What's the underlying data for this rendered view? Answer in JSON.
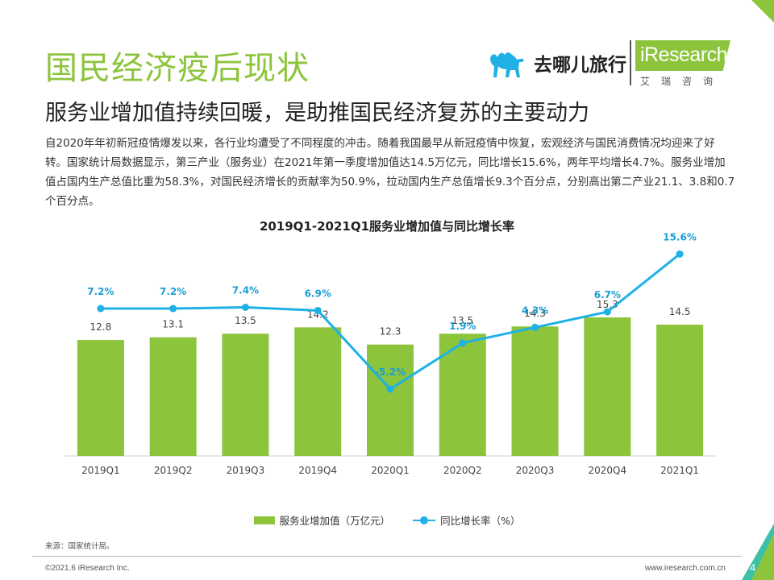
{
  "header": {
    "title": "国民经济疫后现状",
    "subtitle": "服务业增加值持续回暖，是助推国民经济复苏的主要动力"
  },
  "logos": {
    "qunar": "去哪儿旅行",
    "iresearch": "iResearch",
    "iresearch_cn": "艾瑞咨询"
  },
  "body_text": "自2020年年初新冠疫情爆发以来，各行业均遭受了不同程度的冲击。随着我国最早从新冠疫情中恢复，宏观经济与国民消费情况均迎来了好转。国家统计局数据显示，第三产业（服务业）在2021年第一季度增加值达14.5万亿元，同比增长15.6%，两年平均增长4.7%。服务业增加值占国内生产总值比重为58.3%，对国民经济增长的贡献率为50.9%，拉动国内生产总值增长9.3个百分点，分别高出第二产业21.1、3.8和0.7个百分点。",
  "chart_data": {
    "type": "bar",
    "title": "2019Q1-2021Q1服务业增加值与同比增长率",
    "categories": [
      "2019Q1",
      "2019Q2",
      "2019Q3",
      "2019Q4",
      "2020Q1",
      "2020Q2",
      "2020Q3",
      "2020Q4",
      "2021Q1"
    ],
    "series": [
      {
        "name": "服务业增加值（万亿元）",
        "type": "bar",
        "values": [
          12.8,
          13.1,
          13.5,
          14.2,
          12.3,
          13.5,
          14.3,
          15.3,
          14.5
        ],
        "labels": [
          "12.8",
          "13.1",
          "13.5",
          "14.2",
          "12.3",
          "13.5",
          "14.3",
          "15.3",
          "14.5"
        ],
        "color": "#8cc43c"
      },
      {
        "name": "同比增长率（%）",
        "type": "line",
        "values": [
          7.2,
          7.2,
          7.4,
          6.9,
          -5.2,
          1.9,
          4.3,
          6.7,
          15.6
        ],
        "labels": [
          "7.2%",
          "7.2%",
          "7.4%",
          "6.9%",
          "-5.2%",
          "1.9%",
          "4.3%",
          "6.7%",
          "15.6%"
        ],
        "color": "#1fb1e6"
      }
    ],
    "legend_position": "bottom",
    "grid": false
  },
  "source": "来源：国家统计局。",
  "footer": {
    "copyright": "©2021.6 iResearch Inc.",
    "website": "www.iresearch.com.cn",
    "page_number": "4"
  },
  "colors": {
    "accent_green": "#8cc43c",
    "accent_teal": "#3cc0a8",
    "line_blue": "#1fb1e6"
  }
}
